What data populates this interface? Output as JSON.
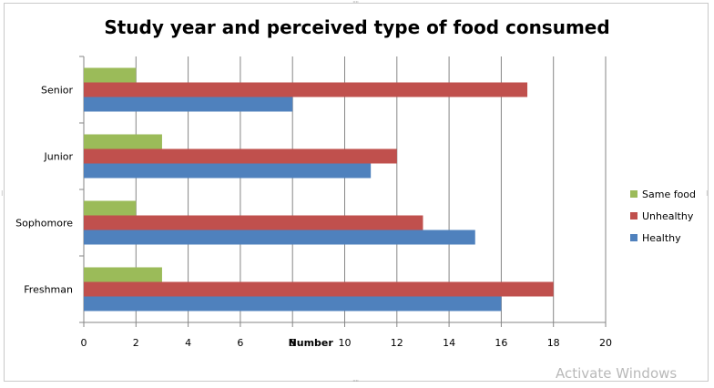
{
  "chart_data": {
    "type": "bar",
    "orientation": "horizontal",
    "title": "Study year and perceived type of food consumed",
    "xlabel": "Number",
    "ylabel": "",
    "categories": [
      "Freshman",
      "Sophomore",
      "Junior",
      "Senior"
    ],
    "series": [
      {
        "name": "Healthy",
        "values": [
          16,
          15,
          11,
          8
        ],
        "color": "#4f81bd"
      },
      {
        "name": "Unhealthy",
        "values": [
          18,
          13,
          12,
          17
        ],
        "color": "#c0504d"
      },
      {
        "name": "Same food",
        "values": [
          3,
          2,
          3,
          2
        ],
        "color": "#9bbb59"
      }
    ],
    "legend_order": [
      "Same food",
      "Unhealthy",
      "Healthy"
    ],
    "xlim": [
      0,
      20
    ],
    "xticks": [
      0,
      2,
      4,
      6,
      8,
      10,
      12,
      14,
      16,
      18,
      20
    ],
    "grid": "vertical",
    "legend_position": "right"
  },
  "watermark": "Activate Windows"
}
